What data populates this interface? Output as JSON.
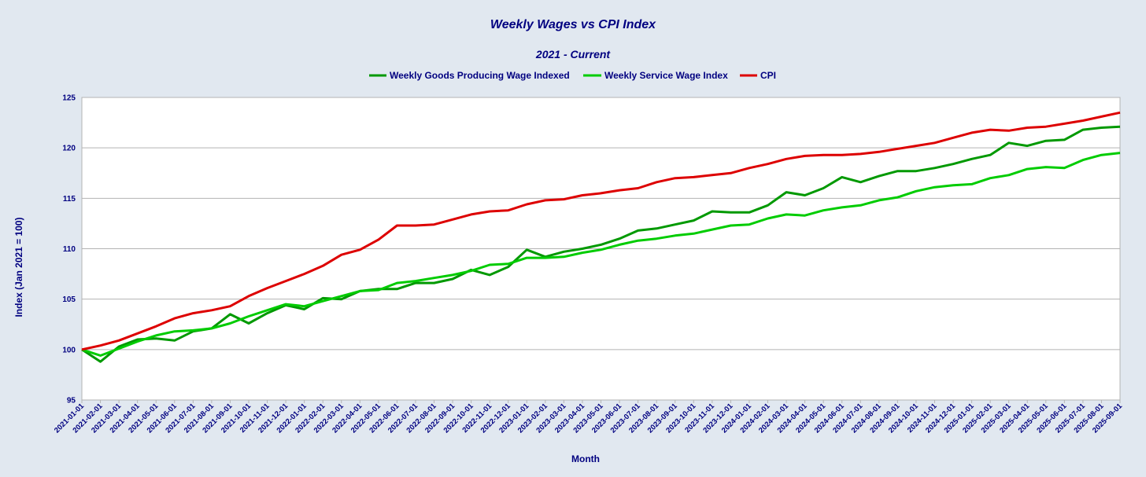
{
  "chart_data": {
    "type": "line",
    "title": "Weekly Wages vs CPI Index",
    "subtitle": "2021 - Current",
    "xlabel": "Month",
    "ylabel": "Index (Jan 2021 = 100)",
    "ylim": [
      95,
      125
    ],
    "yticks": [
      95,
      100,
      105,
      110,
      115,
      120,
      125
    ],
    "grid": true,
    "legend_position": "top",
    "categories": [
      "2021-01-01",
      "2021-02-01",
      "2021-03-01",
      "2021-04-01",
      "2021-05-01",
      "2021-06-01",
      "2021-07-01",
      "2021-08-01",
      "2021-09-01",
      "2021-10-01",
      "2021-11-01",
      "2021-12-01",
      "2022-01-01",
      "2022-02-01",
      "2022-03-01",
      "2022-04-01",
      "2022-05-01",
      "2022-06-01",
      "2022-07-01",
      "2022-08-01",
      "2022-09-01",
      "2022-10-01",
      "2022-11-01",
      "2022-12-01",
      "2023-01-01",
      "2023-02-01",
      "2023-03-01",
      "2023-04-01",
      "2023-05-01",
      "2023-06-01",
      "2023-07-01",
      "2023-08-01",
      "2023-09-01",
      "2023-10-01",
      "2023-11-01",
      "2023-12-01",
      "2024-01-01",
      "2024-02-01",
      "2024-03-01",
      "2024-04-01",
      "2024-05-01",
      "2024-06-01",
      "2024-07-01",
      "2024-08-01",
      "2024-09-01",
      "2024-10-01",
      "2024-11-01",
      "2024-12-01",
      "2025-01-01",
      "2025-02-01",
      "2025-03-01",
      "2025-04-01",
      "2025-05-01",
      "2025-06-01",
      "2025-07-01",
      "2025-08-01",
      "2025-09-01"
    ],
    "series": [
      {
        "name": "Weekly Goods Producing Wage Indexed",
        "color": "#009900",
        "values": [
          100.0,
          98.8,
          100.3,
          101.0,
          101.1,
          100.9,
          101.8,
          102.1,
          103.5,
          102.6,
          103.6,
          104.4,
          104.0,
          105.1,
          105.0,
          105.8,
          106.0,
          106.0,
          106.6,
          106.6,
          107.0,
          107.9,
          107.4,
          108.2,
          109.9,
          109.2,
          109.7,
          110.0,
          110.4,
          111.0,
          111.8,
          112.0,
          112.4,
          112.8,
          113.7,
          113.6,
          113.6,
          114.3,
          115.6,
          115.3,
          116.0,
          117.1,
          116.6,
          117.2,
          117.7,
          117.7,
          118.0,
          118.4,
          118.9,
          119.3,
          120.5,
          120.2,
          120.7,
          120.8,
          121.8,
          122.0,
          122.1
        ]
      },
      {
        "name": "Weekly Service Wage Index",
        "color": "#00cc00",
        "values": [
          100.0,
          99.4,
          100.1,
          100.8,
          101.4,
          101.8,
          101.9,
          102.1,
          102.6,
          103.3,
          103.9,
          104.5,
          104.3,
          104.8,
          105.3,
          105.8,
          105.9,
          106.6,
          106.8,
          107.1,
          107.4,
          107.8,
          108.4,
          108.5,
          109.1,
          109.1,
          109.2,
          109.6,
          109.9,
          110.4,
          110.8,
          111.0,
          111.3,
          111.5,
          111.9,
          112.3,
          112.4,
          113.0,
          113.4,
          113.3,
          113.8,
          114.1,
          114.3,
          114.8,
          115.1,
          115.7,
          116.1,
          116.3,
          116.4,
          117.0,
          117.3,
          117.9,
          118.1,
          118.0,
          118.8,
          119.3,
          119.5
        ]
      },
      {
        "name": "CPI",
        "color": "#dd0000",
        "values": [
          100.0,
          100.4,
          100.9,
          101.6,
          102.3,
          103.1,
          103.6,
          103.9,
          104.3,
          105.3,
          106.1,
          106.8,
          107.5,
          108.3,
          109.4,
          109.9,
          110.9,
          112.3,
          112.3,
          112.4,
          112.9,
          113.4,
          113.7,
          113.8,
          114.4,
          114.8,
          114.9,
          115.3,
          115.5,
          115.8,
          116.0,
          116.6,
          117.0,
          117.1,
          117.3,
          117.5,
          118.0,
          118.4,
          118.9,
          119.2,
          119.3,
          119.3,
          119.4,
          119.6,
          119.9,
          120.2,
          120.5,
          121.0,
          121.5,
          121.8,
          121.7,
          122.0,
          122.1,
          122.4,
          122.7,
          123.1,
          123.5
        ]
      }
    ]
  }
}
